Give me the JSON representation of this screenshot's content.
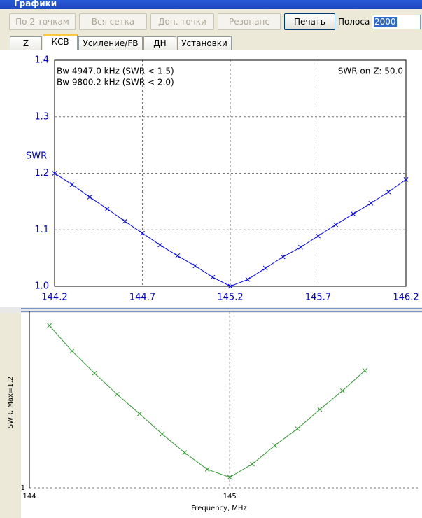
{
  "window": {
    "title": "Графики",
    "toolbar": {
      "buttons": [
        "По 2 точкам",
        "Вся сетка",
        "Доп. точки",
        "Резонанс",
        "Печать"
      ],
      "band_label": "Полоса",
      "band_value": "2000"
    },
    "tabs": [
      "Z",
      "КСВ",
      "Усиление/FB",
      "ДН",
      "Установки"
    ]
  },
  "chart_data": [
    {
      "type": "line",
      "ylabel": "SWR",
      "annotations": [
        "Bw 4947.0 kHz (SWR < 1.5)",
        "Bw 9800.2 kHz (SWR < 2.0)",
        "SWR on Z: 50.0"
      ],
      "x": [
        144.2,
        144.3,
        144.4,
        144.5,
        144.6,
        144.7,
        144.8,
        144.9,
        145.0,
        145.1,
        145.2,
        145.3,
        145.4,
        145.5,
        145.6,
        145.7,
        145.8,
        145.9,
        146.0,
        146.1,
        146.2
      ],
      "series": [
        {
          "color": "#0000ff",
          "values": [
            1.2,
            1.18,
            1.158,
            1.137,
            1.115,
            1.094,
            1.073,
            1.054,
            1.036,
            1.016,
            1.0,
            1.012,
            1.032,
            1.052,
            1.069,
            1.089,
            1.109,
            1.128,
            1.147,
            1.167,
            1.189
          ]
        }
      ],
      "xlim": [
        144.2,
        146.2
      ],
      "xticks": [
        144.2,
        144.7,
        145.2,
        145.7,
        146.2
      ],
      "ylim": [
        1.0,
        1.4
      ],
      "yticks": [
        {
          "value": 1.0,
          "label": "1.0"
        },
        1.1,
        1.2,
        1.3,
        1.4
      ],
      "grid": true
    },
    {
      "type": "line",
      "xlabel": "Frequency, MHz",
      "ylabel": "SWR, Max=1.2",
      "x": [
        144.1,
        144.213,
        144.325,
        144.438,
        144.55,
        144.663,
        144.775,
        144.888,
        145.0,
        145.113,
        145.225,
        145.338,
        145.45,
        145.563,
        145.675
      ],
      "series": [
        {
          "color": "#2e9a2e",
          "values": [
            1.184,
            1.155,
            1.13,
            1.106,
            1.084,
            1.061,
            1.04,
            1.021,
            1.012,
            1.027,
            1.048,
            1.067,
            1.089,
            1.11,
            1.133
          ]
        }
      ],
      "xlim": [
        144,
        145.95
      ],
      "xticks": [
        144,
        145
      ],
      "ylim": [
        1,
        1.2
      ],
      "yticks": [
        1
      ],
      "grid": true
    }
  ]
}
